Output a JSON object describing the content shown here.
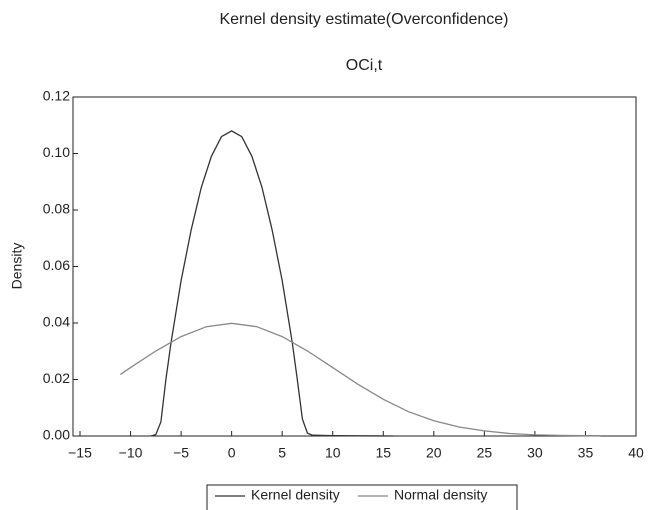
{
  "chart_data": {
    "type": "line",
    "title": "Kernel density estimate(Overconfidence)",
    "subtitle": "OCi,t",
    "y_label": "Density",
    "xlim": [
      -15,
      40
    ],
    "ylim": [
      0,
      0.12
    ],
    "xticks": [
      {
        "value": -15,
        "label": "−15"
      },
      {
        "value": -10,
        "label": "−10"
      },
      {
        "value": -5,
        "label": "−5"
      },
      0,
      5,
      10,
      15,
      20,
      25,
      30,
      35,
      40
    ],
    "yticks": [
      {
        "value": 0,
        "label": "0.00"
      },
      {
        "value": 0.02,
        "label": "0.02"
      },
      {
        "value": 0.04,
        "label": "0.04"
      },
      {
        "value": 0.06,
        "label": "0.06"
      },
      {
        "value": 0.08,
        "label": "0.08"
      },
      {
        "value": 0.1,
        "label": "0.10"
      },
      {
        "value": 0.12,
        "label": "0.12"
      }
    ],
    "series": [
      {
        "name": "Kernel density",
        "color": "#333333",
        "x": [
          -8,
          -7.5,
          -7,
          -6.5,
          -6,
          -5,
          -4,
          -3,
          -2,
          -1,
          0,
          1,
          2,
          3,
          4,
          5,
          6,
          6.5,
          7,
          7.5,
          8,
          10,
          16
        ],
        "values": [
          0,
          0.0005,
          0.005,
          0.02,
          0.033,
          0.055,
          0.073,
          0.088,
          0.099,
          0.106,
          0.108,
          0.106,
          0.099,
          0.088,
          0.073,
          0.055,
          0.033,
          0.02,
          0.006,
          0.001,
          0.0003,
          0.0001,
          0
        ]
      },
      {
        "name": "Normal density",
        "color": "#888888",
        "x": [
          -11,
          -10,
          -7.5,
          -5,
          -2.5,
          0,
          2.5,
          5,
          7.5,
          10,
          12.5,
          15,
          17.5,
          20,
          22.5,
          25,
          27.5,
          30,
          32.5,
          35,
          36.5
        ],
        "values": [
          0.0218,
          0.0242,
          0.0301,
          0.0352,
          0.0387,
          0.0399,
          0.0387,
          0.0352,
          0.0301,
          0.0242,
          0.0183,
          0.013,
          0.0086,
          0.0054,
          0.0032,
          0.0018,
          0.0009,
          0.0004,
          0.0002,
          0.0001,
          0.0001
        ]
      }
    ]
  }
}
